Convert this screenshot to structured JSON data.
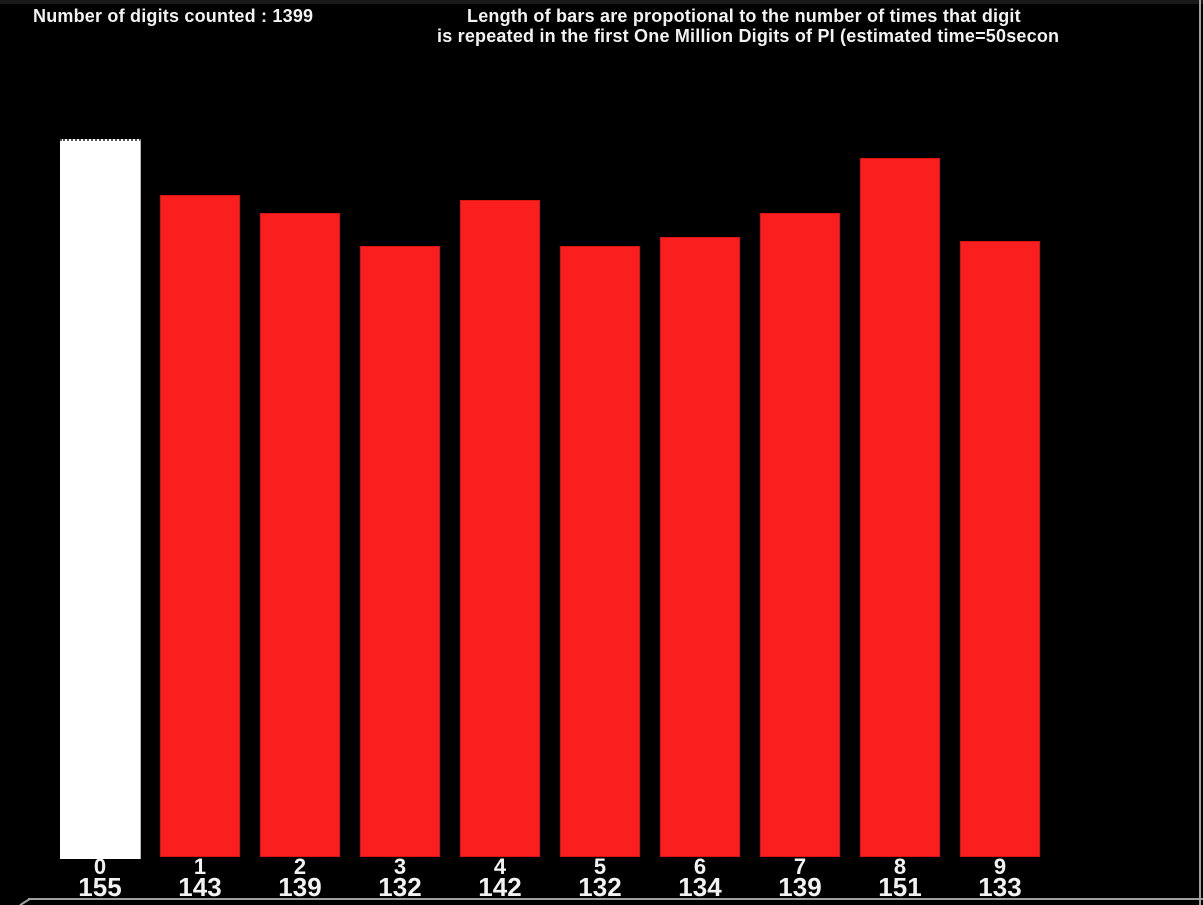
{
  "header": {
    "count_label": "Number of digits counted : 1399",
    "description_line1": "Length of bars are propotional to the number of times that digit",
    "description_line2": "is repeated in the first One Million Digits of PI (estimated time=50secon"
  },
  "chart_data": {
    "type": "bar",
    "title": "Length of bars are propotional to the number of times that digit is repeated in the first One Million Digits of PI (estimated time=50secon",
    "status_text": "Number of digits counted : 1399",
    "total_count_shown": 1399,
    "categories": [
      "0",
      "1",
      "2",
      "3",
      "4",
      "5",
      "6",
      "7",
      "8",
      "9"
    ],
    "values": [
      155,
      143,
      139,
      132,
      142,
      132,
      134,
      139,
      151,
      133
    ],
    "xlabel": "",
    "ylabel": "",
    "axes_shown": false,
    "grid": false,
    "legend": "none",
    "value_label_position": "below-bars",
    "background_color": "#000000",
    "bar_color": "#fa1e1e",
    "highlight_bar_index": 0,
    "highlight_bar_color": "#ffffff",
    "text_color": "#f2f2f2"
  }
}
